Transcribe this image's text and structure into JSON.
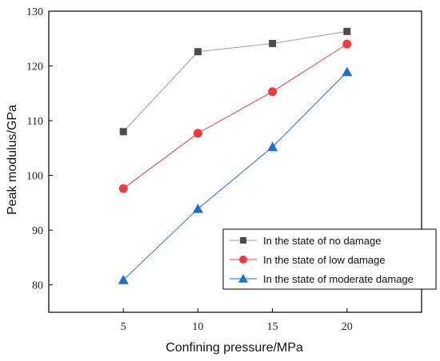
{
  "chart_data": {
    "type": "line",
    "xlabel": "Confining pressure/MPa",
    "ylabel": "Peak modulus/GPa",
    "x": [
      5,
      10,
      15,
      20
    ],
    "xlim": [
      0,
      25
    ],
    "ylim": [
      75,
      130
    ],
    "xticks": [
      5,
      10,
      15,
      20
    ],
    "yticks": [
      80,
      90,
      100,
      110,
      120,
      130
    ],
    "grid": false,
    "legend_position": "bottom-right",
    "series": [
      {
        "name": "In the state of no damage",
        "values": [
          108.0,
          122.6,
          124.1,
          126.3
        ],
        "color": "#4d4d4d",
        "line_color": "#9a9a9a",
        "marker": "square"
      },
      {
        "name": "In the state of low damage",
        "values": [
          97.6,
          107.7,
          115.3,
          124.0
        ],
        "color": "#f0393c",
        "line_color": "#f0393c",
        "marker": "circle"
      },
      {
        "name": "In the state of moderate damage",
        "values": [
          80.9,
          93.9,
          105.2,
          118.9
        ],
        "color": "#1a6fd6",
        "line_color": "#1a6fd6",
        "marker": "triangle"
      }
    ]
  }
}
